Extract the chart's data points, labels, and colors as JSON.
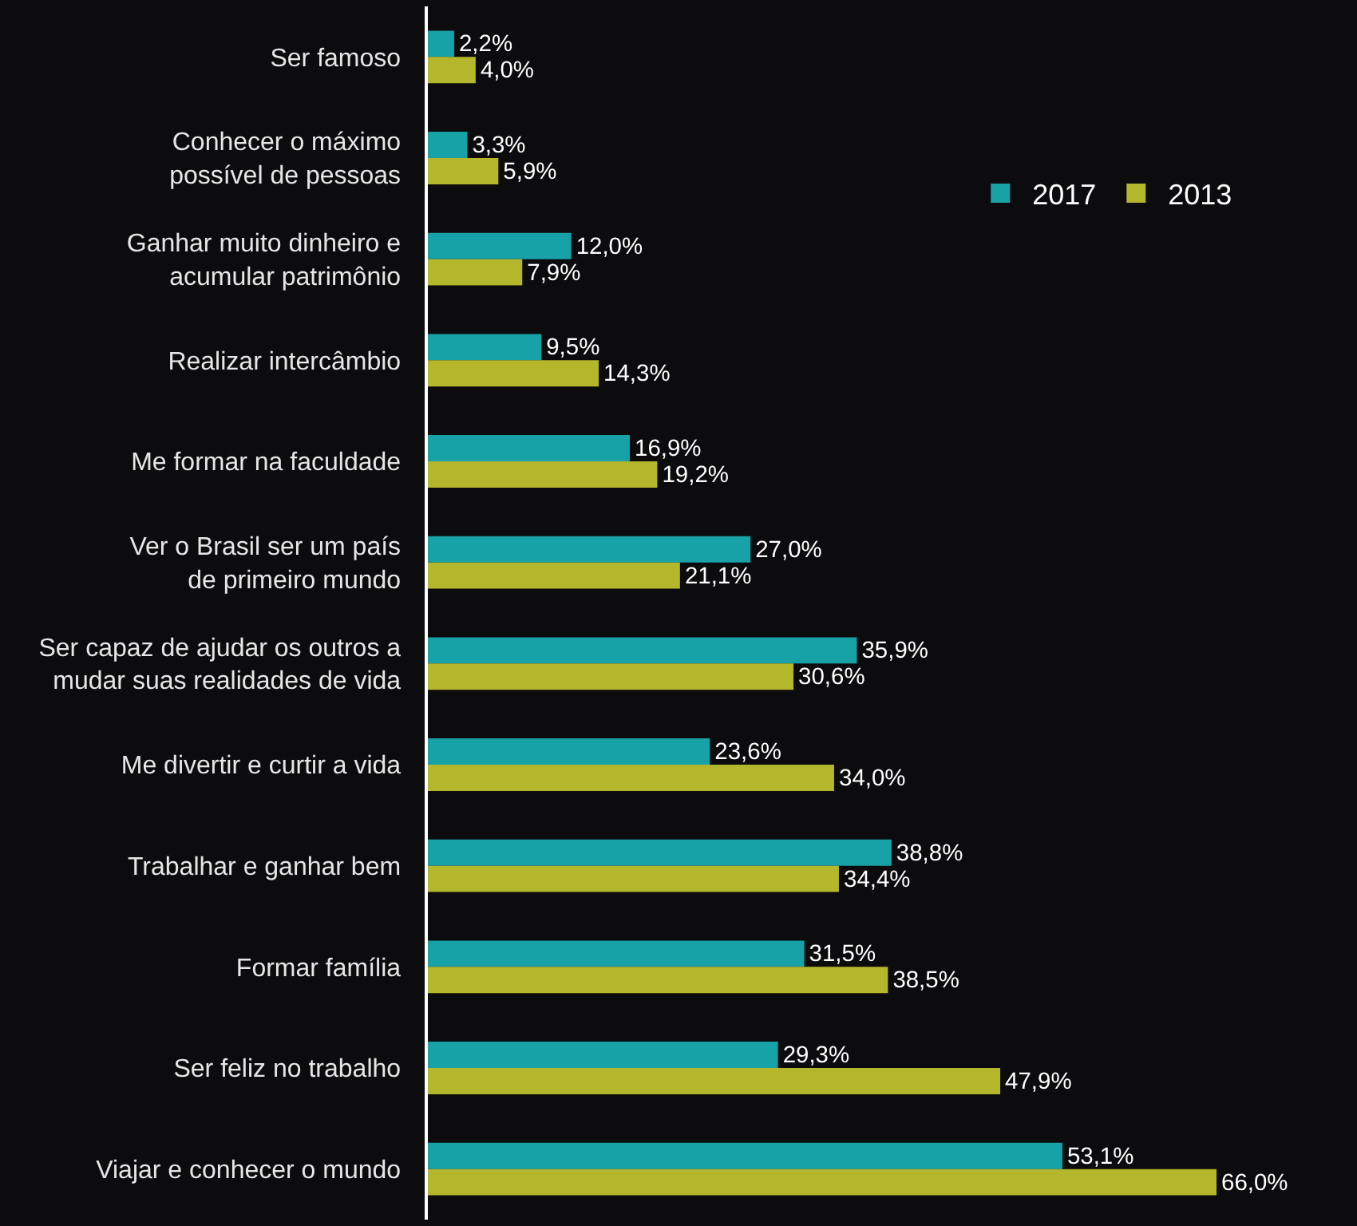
{
  "chart_data": {
    "type": "bar",
    "orientation": "horizontal",
    "categories": [
      "Ser famoso",
      "Conhecer o máximo\npossível de pessoas",
      "Ganhar muito dinheiro e\nacumular patrimônio",
      "Realizar intercâmbio",
      "Me formar na faculdade",
      "Ver o Brasil ser um país\nde primeiro mundo",
      "Ser capaz de ajudar os outros a\nmudar suas realidades de vida",
      "Me divertir e curtir a vida",
      "Trabalhar e ganhar bem",
      "Formar família",
      "Ser feliz no trabalho",
      "Viajar e conhecer o mundo"
    ],
    "series": [
      {
        "name": "2017",
        "color": "#17a2a8",
        "values": [
          2.2,
          3.3,
          12.0,
          9.5,
          16.9,
          27.0,
          35.9,
          23.6,
          38.8,
          31.5,
          29.3,
          53.1
        ],
        "value_labels": [
          "2,2%",
          "3,3%",
          "12,0%",
          "9,5%",
          "16,9%",
          "27,0%",
          "35,9%",
          "23,6%",
          "38,8%",
          "31,5%",
          "29,3%",
          "53,1%"
        ]
      },
      {
        "name": "2013",
        "color": "#b4b62c",
        "values": [
          4.0,
          5.9,
          7.9,
          14.3,
          19.2,
          21.1,
          30.6,
          34.0,
          34.4,
          38.5,
          47.9,
          66.0
        ],
        "value_labels": [
          "4,0%",
          "5,9%",
          "7,9%",
          "14,3%",
          "19,2%",
          "21,1%",
          "30,6%",
          "34,0%",
          "34,4%",
          "38,5%",
          "47,9%",
          "66,0%"
        ]
      }
    ],
    "tick_labels": "y",
    "legend": "top right"
  }
}
